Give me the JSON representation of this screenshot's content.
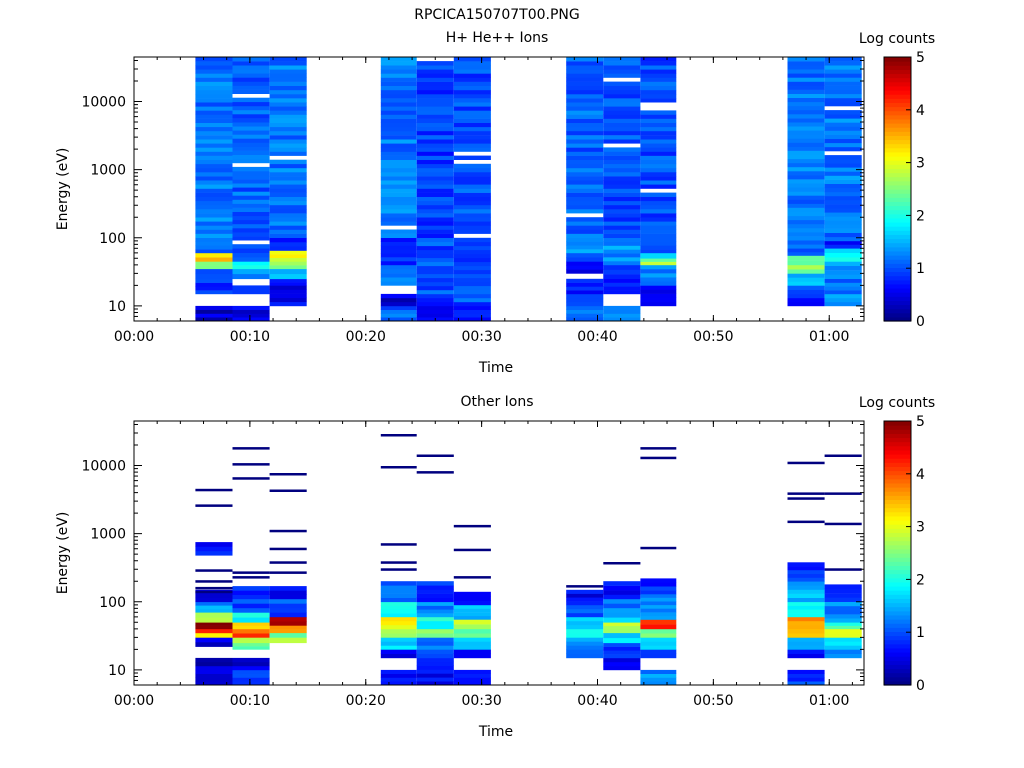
{
  "figure_title": "RPCICA150707T00.PNG",
  "colors": {
    "colormap": [
      "#00007f",
      "#0000ff",
      "#0080ff",
      "#00ffff",
      "#80ff80",
      "#ffff00",
      "#ff8000",
      "#ff0000",
      "#7f0000"
    ],
    "background": "#ffffff"
  },
  "chart_data": [
    {
      "type": "heatmap",
      "title": "H+ He++ Ions",
      "xlabel": "Time",
      "ylabel": "Energy (eV)",
      "yscale": "log",
      "ylim": [
        6,
        45000
      ],
      "xlim": [
        0,
        63
      ],
      "xticks": [
        0,
        10,
        20,
        30,
        40,
        50,
        60
      ],
      "xtick_labels": [
        "00:00",
        "00:10",
        "00:20",
        "00:30",
        "00:40",
        "00:50",
        "01:00"
      ],
      "yticks": [
        10,
        100,
        1000,
        10000
      ],
      "ytick_labels": [
        "10",
        "100",
        "1000",
        "10000"
      ],
      "colorbar": {
        "label": "Log counts",
        "range": [
          0,
          5
        ],
        "ticks": [
          "0",
          "1",
          "2",
          "3",
          "4",
          "5"
        ]
      },
      "energy_range_eV": [
        6,
        45000
      ],
      "blocks": [
        {
          "t_start": 5.3,
          "t_end": 8.5,
          "bands": [
            [
              6,
              10,
              0.4
            ],
            [
              10,
              15,
              0
            ],
            [
              15,
              25,
              0.8
            ],
            [
              25,
              35,
              1.1
            ],
            [
              35,
              45,
              2.3
            ],
            [
              45,
              60,
              3.3
            ],
            [
              60,
              100,
              1.0
            ],
            [
              100,
              45000,
              1.2
            ]
          ]
        },
        {
          "t_start": 8.5,
          "t_end": 11.7,
          "bands": [
            [
              6,
              10,
              0.5
            ],
            [
              10,
              15,
              0
            ],
            [
              15,
              20,
              0.7
            ],
            [
              20,
              25,
              0
            ],
            [
              25,
              35,
              1.3
            ],
            [
              35,
              45,
              1.8
            ],
            [
              45,
              70,
              0.9
            ],
            [
              70,
              45000,
              1.1
            ]
          ]
        },
        {
          "t_start": 11.7,
          "t_end": 14.9,
          "bands": [
            [
              10,
              20,
              0.6
            ],
            [
              20,
              25,
              0.8
            ],
            [
              25,
              35,
              1.4
            ],
            [
              35,
              45,
              2.6
            ],
            [
              45,
              65,
              3.1
            ],
            [
              65,
              100,
              0.7
            ],
            [
              100,
              45000,
              1.2
            ]
          ]
        },
        {
          "t_start": 21.3,
          "t_end": 24.4,
          "bands": [
            [
              6,
              10,
              1.1
            ],
            [
              10,
              15,
              0.4
            ],
            [
              15,
              20,
              0
            ],
            [
              20,
              40,
              1.3
            ],
            [
              40,
              100,
              0.9
            ],
            [
              100,
              45000,
              1.2
            ]
          ]
        },
        {
          "t_start": 24.4,
          "t_end": 27.6,
          "bands": [
            [
              6,
              10,
              0.6
            ],
            [
              10,
              15,
              0.9
            ],
            [
              15,
              100,
              1.0
            ],
            [
              100,
              45000,
              0.9
            ]
          ]
        },
        {
          "t_start": 27.6,
          "t_end": 30.8,
          "bands": [
            [
              6,
              10,
              0.6
            ],
            [
              10,
              100,
              1.0
            ],
            [
              100,
              45000,
              1.0
            ]
          ]
        },
        {
          "t_start": 37.3,
          "t_end": 40.5,
          "bands": [
            [
              6,
              10,
              1.2
            ],
            [
              10,
              15,
              1.0
            ],
            [
              15,
              25,
              0.7
            ],
            [
              25,
              30,
              0
            ],
            [
              30,
              45,
              0.6
            ],
            [
              45,
              60,
              1.0
            ],
            [
              60,
              100,
              1.4
            ],
            [
              100,
              45000,
              1.1
            ]
          ]
        },
        {
          "t_start": 40.5,
          "t_end": 43.7,
          "bands": [
            [
              6,
              10,
              1.2
            ],
            [
              10,
              15,
              0
            ],
            [
              15,
              25,
              0.8
            ],
            [
              25,
              40,
              0.9
            ],
            [
              40,
              100,
              1.3
            ],
            [
              100,
              45000,
              1.0
            ]
          ]
        },
        {
          "t_start": 43.7,
          "t_end": 46.8,
          "bands": [
            [
              10,
              20,
              0.5
            ],
            [
              20,
              40,
              1.2
            ],
            [
              40,
              50,
              2.6
            ],
            [
              50,
              60,
              1.7
            ],
            [
              60,
              100,
              1.1
            ],
            [
              100,
              45000,
              1.0
            ]
          ]
        },
        {
          "t_start": 56.4,
          "t_end": 59.6,
          "bands": [
            [
              10,
              15,
              0.7
            ],
            [
              15,
              20,
              1.0
            ],
            [
              20,
              30,
              1.5
            ],
            [
              30,
              40,
              2.6
            ],
            [
              40,
              55,
              2.3
            ],
            [
              55,
              70,
              1.0
            ],
            [
              70,
              45000,
              1.2
            ]
          ]
        },
        {
          "t_start": 59.6,
          "t_end": 62.8,
          "bands": [
            [
              10,
              15,
              1.5
            ],
            [
              15,
              25,
              1.1
            ],
            [
              25,
              45,
              1.3
            ],
            [
              45,
              70,
              1.8
            ],
            [
              70,
              90,
              0.6
            ],
            [
              90,
              45000,
              1.2
            ]
          ]
        }
      ]
    },
    {
      "type": "heatmap",
      "title": "Other Ions",
      "xlabel": "Time",
      "ylabel": "Energy (eV)",
      "yscale": "log",
      "ylim": [
        6,
        45000
      ],
      "xlim": [
        0,
        63
      ],
      "xticks": [
        0,
        10,
        20,
        30,
        40,
        50,
        60
      ],
      "xtick_labels": [
        "00:00",
        "00:10",
        "00:20",
        "00:30",
        "00:40",
        "00:50",
        "01:00"
      ],
      "yticks": [
        10,
        100,
        1000,
        10000
      ],
      "ytick_labels": [
        "10",
        "100",
        "1000",
        "10000"
      ],
      "colorbar": {
        "label": "Log counts",
        "range": [
          0,
          5
        ],
        "ticks": [
          "0",
          "1",
          "2",
          "3",
          "4",
          "5"
        ]
      },
      "energy_range_eV": [
        6,
        45000
      ],
      "blocks": [
        {
          "t_start": 5.3,
          "t_end": 8.5,
          "bands": [
            [
              6,
              10,
              0.6
            ],
            [
              10,
              15,
              0.3
            ],
            [
              22,
              30,
              0.5
            ],
            [
              30,
              35,
              3.4
            ],
            [
              35,
              40,
              4.3
            ],
            [
              40,
              50,
              4.8
            ],
            [
              50,
              70,
              2.7
            ],
            [
              70,
              100,
              1.4
            ],
            [
              100,
              150,
              0.6
            ],
            [
              480,
              750,
              0.7
            ]
          ],
          "lines": [
            140,
            160,
            200,
            290,
            2600,
            4400
          ]
        },
        {
          "t_start": 8.5,
          "t_end": 11.7,
          "bands": [
            [
              6,
              10,
              0.9
            ],
            [
              10,
              15,
              0.5
            ],
            [
              20,
              25,
              2.2
            ],
            [
              25,
              30,
              2.6
            ],
            [
              30,
              40,
              4.0
            ],
            [
              40,
              50,
              3.3
            ],
            [
              50,
              70,
              1.8
            ],
            [
              70,
              110,
              1.0
            ],
            [
              110,
              170,
              0.8
            ]
          ],
          "lines": [
            230,
            270,
            6500,
            10500,
            18000
          ]
        },
        {
          "t_start": 11.7,
          "t_end": 14.9,
          "bands": [
            [
              25,
              30,
              2.9
            ],
            [
              30,
              35,
              2.5
            ],
            [
              35,
              45,
              3.6
            ],
            [
              45,
              60,
              4.6
            ],
            [
              60,
              110,
              1.0
            ],
            [
              110,
              170,
              0.7
            ]
          ],
          "lines": [
            270,
            380,
            600,
            1100,
            4300,
            7500
          ]
        },
        {
          "t_start": 21.3,
          "t_end": 24.4,
          "bands": [
            [
              6,
              10,
              0.6
            ],
            [
              15,
              20,
              0.5
            ],
            [
              20,
              30,
              1.6
            ],
            [
              30,
              40,
              2.6
            ],
            [
              40,
              60,
              3.1
            ],
            [
              60,
              100,
              2.0
            ],
            [
              100,
              200,
              1.2
            ]
          ],
          "lines": [
            300,
            380,
            700,
            9500,
            28000
          ]
        },
        {
          "t_start": 24.4,
          "t_end": 27.6,
          "bands": [
            [
              6,
              15,
              0.6
            ],
            [
              15,
              20,
              0.8
            ],
            [
              20,
              30,
              1.3
            ],
            [
              30,
              40,
              2.4
            ],
            [
              40,
              60,
              1.9
            ],
            [
              60,
              100,
              1.3
            ],
            [
              100,
              200,
              0.9
            ]
          ],
          "lines": [
            8000,
            14000
          ]
        },
        {
          "t_start": 27.6,
          "t_end": 30.8,
          "bands": [
            [
              6,
              10,
              0.9
            ],
            [
              15,
              20,
              0.7
            ],
            [
              20,
              30,
              1.7
            ],
            [
              30,
              40,
              2.3
            ],
            [
              40,
              55,
              2.7
            ],
            [
              55,
              90,
              1.6
            ],
            [
              90,
              140,
              0.8
            ]
          ],
          "lines": [
            230,
            580,
            1300
          ]
        },
        {
          "t_start": 37.3,
          "t_end": 40.5,
          "bands": [
            [
              15,
              20,
              1.0
            ],
            [
              20,
              30,
              1.4
            ],
            [
              30,
              40,
              1.9
            ],
            [
              40,
              60,
              1.5
            ],
            [
              60,
              90,
              1.1
            ],
            [
              90,
              150,
              0.6
            ]
          ],
          "lines": [
            170
          ]
        },
        {
          "t_start": 40.5,
          "t_end": 43.7,
          "bands": [
            [
              10,
              15,
              0.4
            ],
            [
              15,
              25,
              1.0
            ],
            [
              25,
              35,
              1.7
            ],
            [
              35,
              50,
              2.8
            ],
            [
              50,
              70,
              1.6
            ],
            [
              70,
              110,
              1.2
            ],
            [
              110,
              200,
              0.7
            ]
          ],
          "lines": [
            370
          ]
        },
        {
          "t_start": 43.7,
          "t_end": 46.8,
          "bands": [
            [
              6,
              10,
              1.3
            ],
            [
              15,
              20,
              0.9
            ],
            [
              20,
              30,
              1.7
            ],
            [
              30,
              40,
              2.3
            ],
            [
              40,
              55,
              4.1
            ],
            [
              55,
              80,
              1.4
            ],
            [
              80,
              130,
              1.2
            ],
            [
              130,
              220,
              0.8
            ]
          ],
          "lines": [
            620,
            13000,
            18000
          ]
        },
        {
          "t_start": 56.4,
          "t_end": 59.6,
          "bands": [
            [
              6,
              10,
              0.9
            ],
            [
              15,
              20,
              0.7
            ],
            [
              20,
              30,
              1.3
            ],
            [
              30,
              40,
              3.3
            ],
            [
              40,
              60,
              3.6
            ],
            [
              60,
              100,
              2.0
            ],
            [
              100,
              200,
              1.5
            ],
            [
              200,
              380,
              0.9
            ]
          ],
          "lines": [
            1500,
            3300,
            3900,
            11000
          ]
        },
        {
          "t_start": 59.6,
          "t_end": 62.8,
          "bands": [
            [
              15,
              20,
              1.2
            ],
            [
              20,
              30,
              1.6
            ],
            [
              30,
              40,
              3.0
            ],
            [
              40,
              50,
              2.1
            ],
            [
              50,
              100,
              1.3
            ],
            [
              100,
              180,
              0.8
            ]
          ],
          "lines": [
            300,
            1400,
            3900,
            14000
          ]
        }
      ]
    }
  ]
}
